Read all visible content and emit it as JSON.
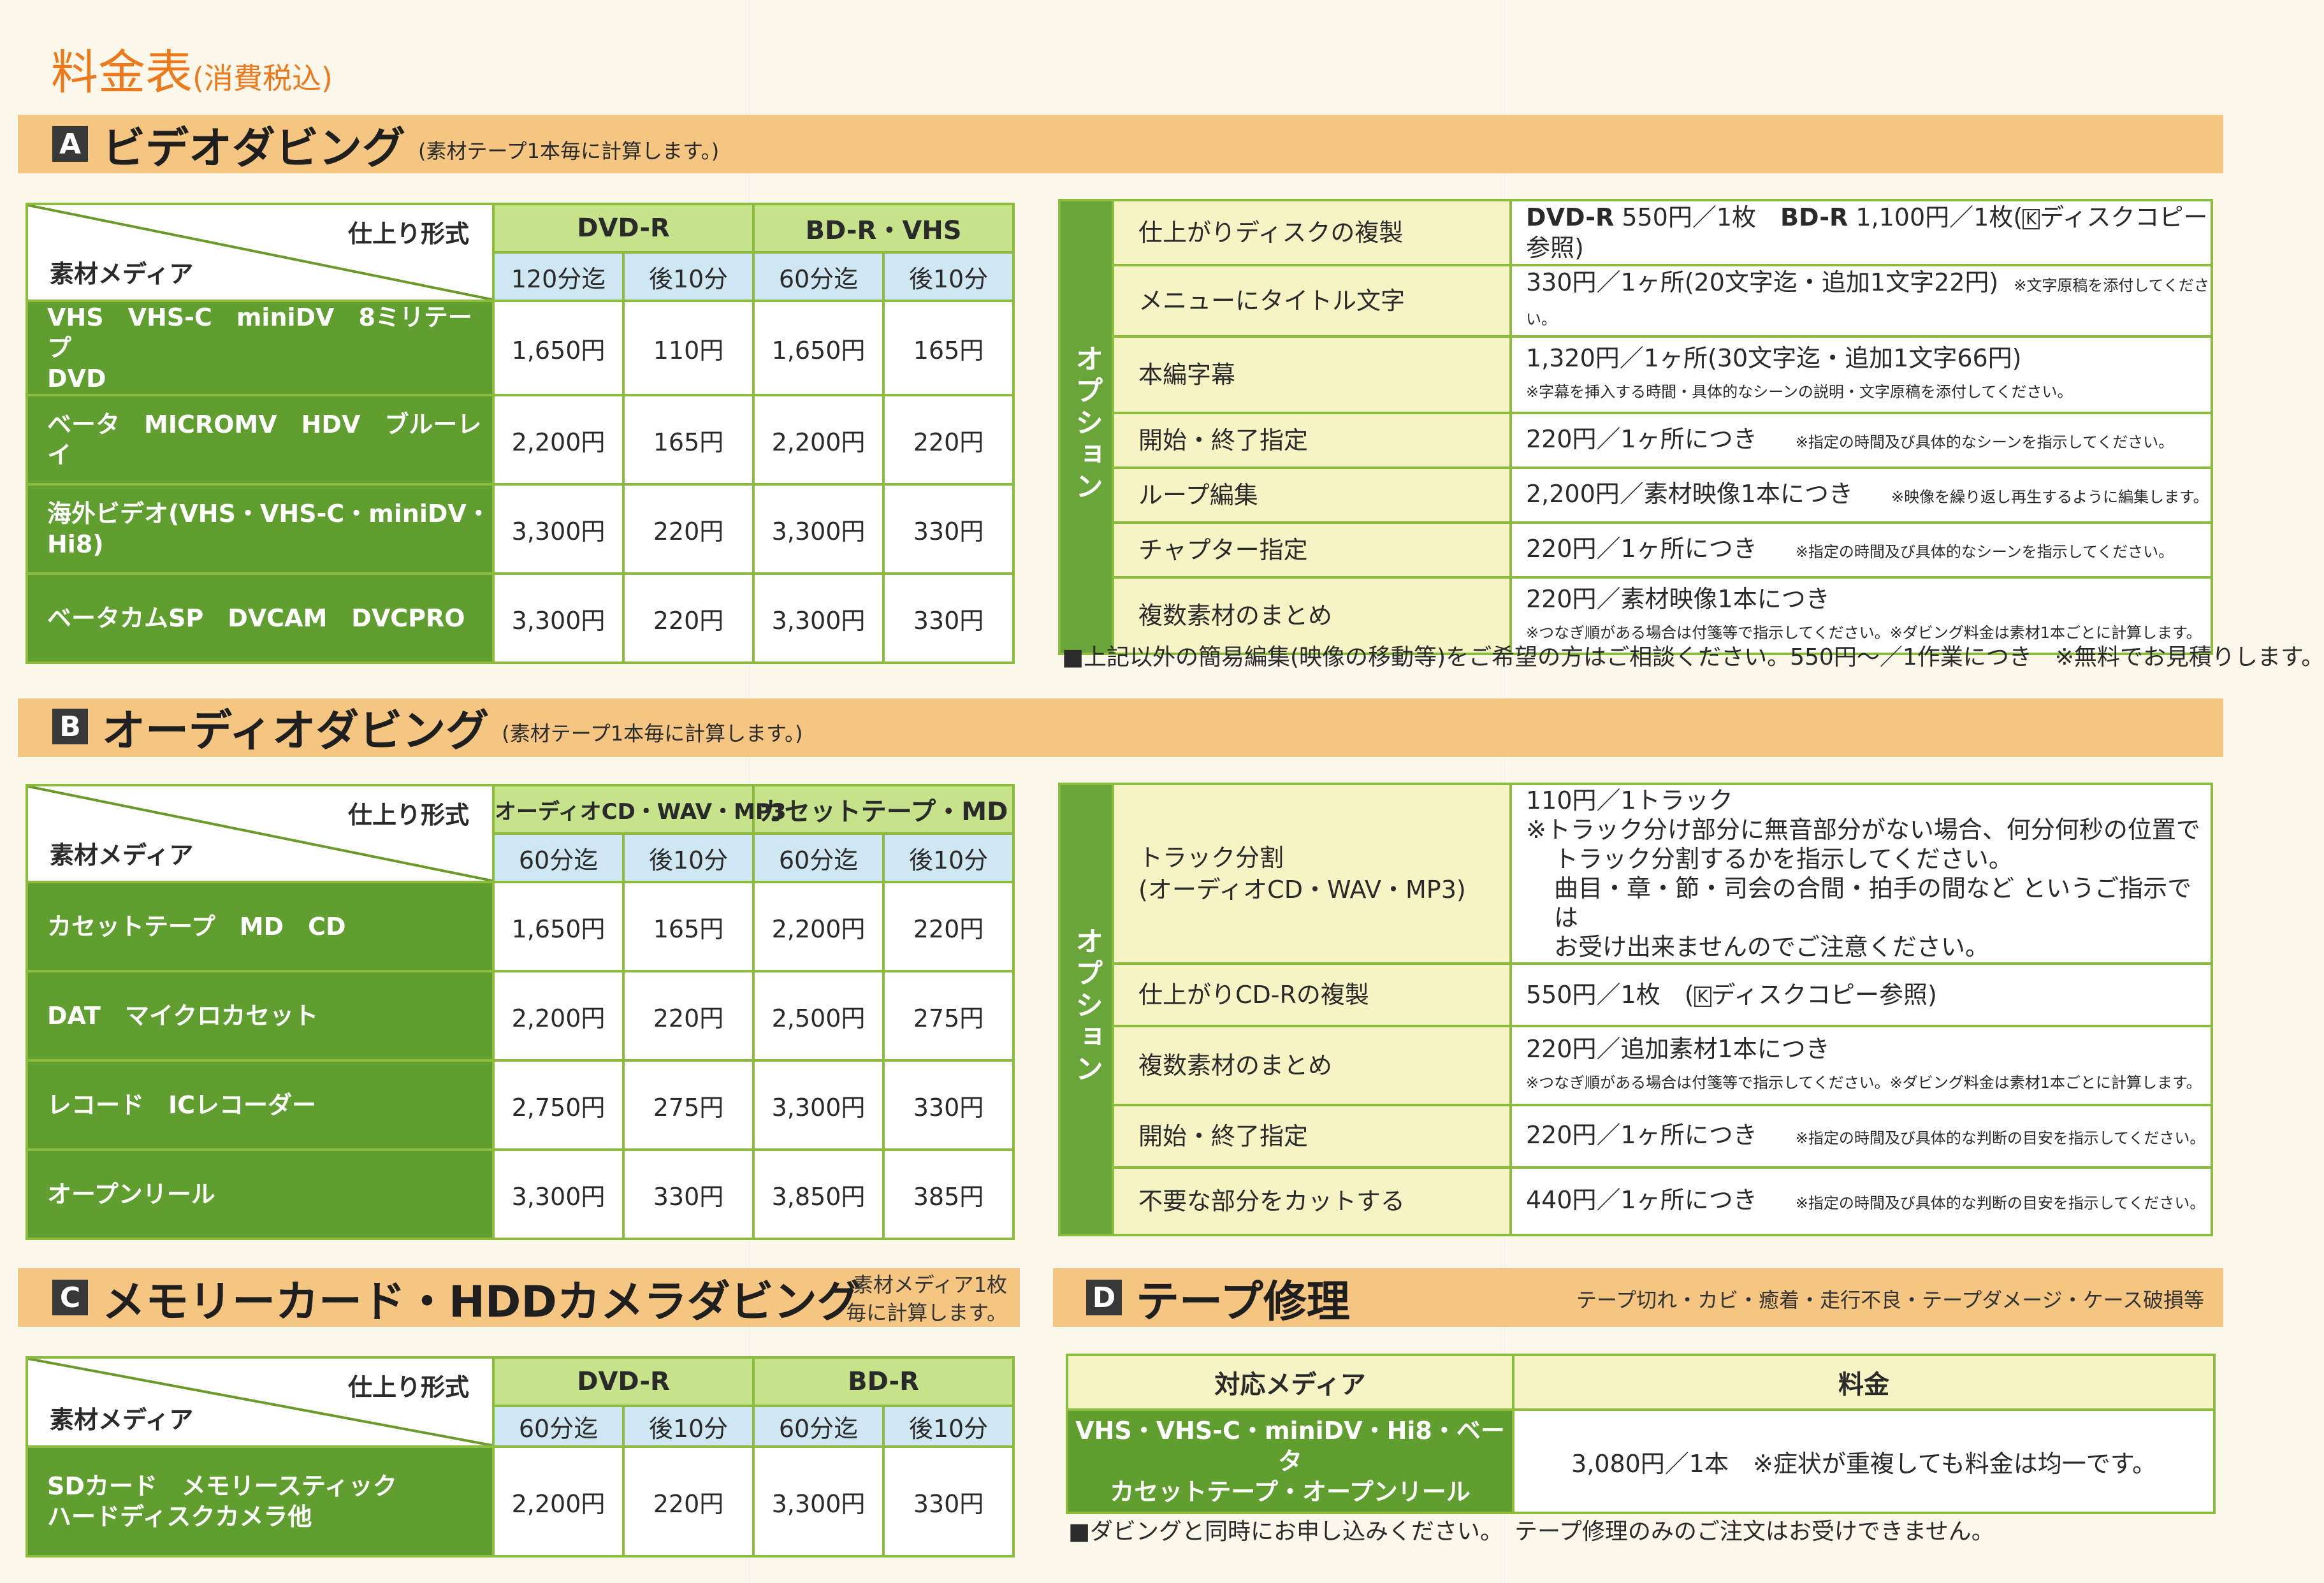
{
  "page": {
    "title": "料金表",
    "title_sub": "(消費税込)"
  },
  "common": {
    "spec_label": "仕上り形式",
    "media_label": "素材メディア",
    "option_label": "オプション"
  },
  "sectionA": {
    "letter": "A",
    "name": "ビデオダビング",
    "note": "(素材テープ1本毎に計算します。)",
    "col_group1": "DVD-R",
    "col_group2": "BD-R・VHS",
    "sub_headers": [
      "120分迄",
      "後10分",
      "60分迄",
      "後10分"
    ],
    "rows": [
      {
        "media1": "VHS　VHS-C　miniDV　8ミリテープ",
        "media2": "DVD",
        "prices": [
          "1,650円",
          "110円",
          "1,650円",
          "165円"
        ]
      },
      {
        "media1": "ベータ　MICROMV　HDV　ブルーレイ",
        "media2": "",
        "prices": [
          "2,200円",
          "165円",
          "2,200円",
          "220円"
        ]
      },
      {
        "media1": "海外ビデオ(VHS・VHS-C・miniDV・Hi8)",
        "media2": "",
        "prices": [
          "3,300円",
          "220円",
          "3,300円",
          "330円"
        ]
      },
      {
        "media1": "ベータカムSP　DVCAM　DVCPRO",
        "media2": "",
        "prices": [
          "3,300円",
          "220円",
          "3,300円",
          "330円"
        ]
      }
    ],
    "options": [
      {
        "name": "仕上がりディスクの複製",
        "v1a": "DVD-R",
        "v1b": " 550円／1枚　",
        "v1c": "BD-R",
        "v1d": " 1,100円／1枚(",
        "v1e": "K",
        "v1f": "ディスクコピー参照)"
      },
      {
        "name": "メニューにタイトル文字",
        "value": "330円／1ヶ所(20文字迄・追加1文字22円)",
        "note": "※文字原稿を添付してください。"
      },
      {
        "name": "本編字幕",
        "value": "1,320円／1ヶ所(30文字迄・追加1文字66円)",
        "note": "※字幕を挿入する時間・具体的なシーンの説明・文字原稿を添付してください。"
      },
      {
        "name": "開始・終了指定",
        "value": "220円／1ヶ所につき",
        "note": "※指定の時間及び具体的なシーンを指示してください。"
      },
      {
        "name": "ループ編集",
        "value": "2,200円／素材映像1本につき",
        "note": "※映像を繰り返し再生するように編集します。"
      },
      {
        "name": "チャプター指定",
        "value": "220円／1ヶ所につき",
        "note": "※指定の時間及び具体的なシーンを指示してください。"
      },
      {
        "name": "複数素材のまとめ",
        "value": "220円／素材映像1本につき",
        "note": "※つなぎ順がある場合は付箋等で指示してください。※ダビング料金は素材1本ごとに計算します。"
      }
    ],
    "footnote": "■上記以外の簡易編集(映像の移動等)をご希望の方はご相談ください。550円～／1作業につき　※無料でお見積りします。"
  },
  "sectionB": {
    "letter": "B",
    "name": "オーディオダビング",
    "note": "(素材テープ1本毎に計算します。)",
    "col_group1": "オーディオCD・WAV・MP3",
    "col_group2": "カセットテープ・MD",
    "sub_headers": [
      "60分迄",
      "後10分",
      "60分迄",
      "後10分"
    ],
    "rows": [
      {
        "media1": "カセットテープ　MD　CD",
        "prices": [
          "1,650円",
          "165円",
          "2,200円",
          "220円"
        ]
      },
      {
        "media1": "DAT　マイクロカセット",
        "prices": [
          "2,200円",
          "220円",
          "2,500円",
          "275円"
        ]
      },
      {
        "media1": "レコード　ICレコーダー",
        "prices": [
          "2,750円",
          "275円",
          "3,300円",
          "330円"
        ]
      },
      {
        "media1": "オープンリール",
        "prices": [
          "3,300円",
          "330円",
          "3,850円",
          "385円"
        ]
      }
    ],
    "options": [
      {
        "name1": "トラック分割",
        "name2": "(オーディオCD・WAV・MP3)",
        "value": "110円／1トラック",
        "l1": "※トラック分け部分に無音部分がない場合、何分何秒の位置で",
        "l2": "トラック分割するかを指示してください。",
        "l3": "曲目・章・節・司会の合間・拍手の間など というご指示では",
        "l4": "お受け出来ませんのでご注意ください。"
      },
      {
        "name": "仕上がりCD-Rの複製",
        "v1": "550円／1枚　(",
        "v2": "K",
        "v3": "ディスクコピー参照)"
      },
      {
        "name": "複数素材のまとめ",
        "value": "220円／追加素材1本につき",
        "note": "※つなぎ順がある場合は付箋等で指示してください。※ダビング料金は素材1本ごとに計算します。"
      },
      {
        "name": "開始・終了指定",
        "value": "220円／1ヶ所につき",
        "note": "※指定の時間及び具体的な判断の目安を指示してください。"
      },
      {
        "name": "不要な部分をカットする",
        "value": "440円／1ヶ所につき",
        "note": "※指定の時間及び具体的な判断の目安を指示してください。"
      }
    ]
  },
  "sectionC": {
    "letter": "C",
    "name": "メモリーカード・HDDカメラダビング",
    "note_line1": "素材メディア1枚",
    "note_line2": "毎に計算します。",
    "col_group1": "DVD-R",
    "col_group2": "BD-R",
    "sub_headers": [
      "60分迄",
      "後10分",
      "60分迄",
      "後10分"
    ],
    "rows": [
      {
        "media1": "SDカード　メモリースティック",
        "media2": "ハードディスクカメラ他",
        "prices": [
          "2,200円",
          "220円",
          "3,300円",
          "330円"
        ]
      }
    ]
  },
  "sectionD": {
    "letter": "D",
    "name": "テープ修理",
    "note": "テープ切れ・カビ・癒着・走行不良・テープダメージ・ケース破損等",
    "header_media": "対応メディア",
    "header_price": "料金",
    "media1": "VHS・VHS-C・miniDV・Hi8・ベータ",
    "media2": "カセットテープ・オープンリール",
    "price": "3,080円／1本　※症状が重複しても料金は均一です。",
    "footnote": "■ダビングと同時にお申し込みください。　テープ修理のみのご注文はお受けできません。"
  }
}
